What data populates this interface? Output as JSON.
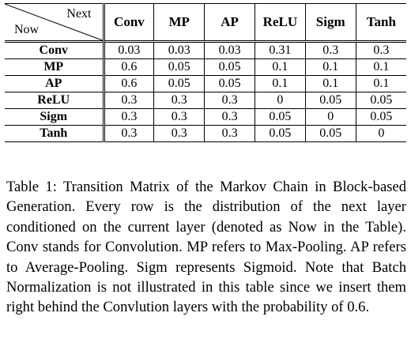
{
  "table": {
    "corner_top": "Next",
    "corner_bottom": "Now",
    "columns": [
      "Conv",
      "MP",
      "AP",
      "ReLU",
      "Sigm",
      "Tanh"
    ],
    "rows": [
      {
        "label": "Conv",
        "values": [
          "0.03",
          "0.03",
          "0.03",
          "0.31",
          "0.3",
          "0.3"
        ]
      },
      {
        "label": "MP",
        "values": [
          "0.6",
          "0.05",
          "0.05",
          "0.1",
          "0.1",
          "0.1"
        ]
      },
      {
        "label": "AP",
        "values": [
          "0.6",
          "0.05",
          "0.05",
          "0.1",
          "0.1",
          "0.1"
        ]
      },
      {
        "label": "ReLU",
        "values": [
          "0.3",
          "0.3",
          "0.3",
          "0",
          "0.05",
          "0.05"
        ]
      },
      {
        "label": "Sigm",
        "values": [
          "0.3",
          "0.3",
          "0.3",
          "0.05",
          "0",
          "0.05"
        ]
      },
      {
        "label": "Tanh",
        "values": [
          "0.3",
          "0.3",
          "0.3",
          "0.05",
          "0.05",
          "0"
        ]
      }
    ]
  },
  "caption": "Table 1: Transition Matrix of the Markov Chain in Block-based Generation. Every row is the distribution of the next layer conditioned on the current layer (denoted as Now in the Table). Conv stands for Convolution. MP refers to Max-Pooling. AP refers to Average-Pooling. Sigm represents Sigmoid. Note that Batch Normalization is not illustrated in this table since we insert them right behind the Convlution layers with the probability of 0.6."
}
